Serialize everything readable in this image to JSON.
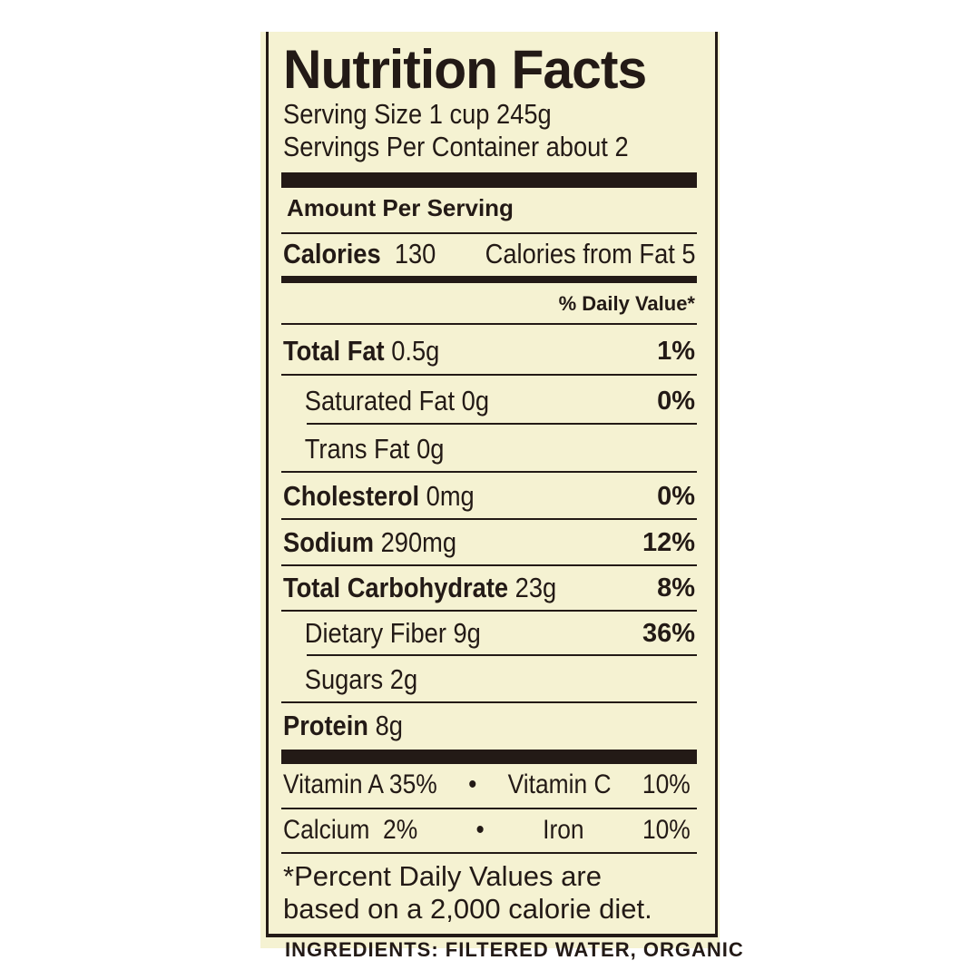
{
  "title": "Nutrition Facts",
  "serving_size": "Serving Size 1 cup 245g",
  "servings_per_container": "Servings Per Container about 2",
  "amount_per_serving": "Amount Per Serving",
  "calories": {
    "label": "Calories",
    "value": "130",
    "from_fat": "Calories from Fat 5"
  },
  "daily_value_header": "% Daily Value*",
  "nutrients": [
    {
      "label": "Total Fat",
      "amount": "0.5g",
      "dv": "1%"
    },
    {
      "label": "Saturated Fat",
      "amount": "0g",
      "dv": "0%"
    },
    {
      "label": "Trans Fat",
      "amount": "0g",
      "dv": ""
    },
    {
      "label": "Cholesterol",
      "amount": "0mg",
      "dv": "0%"
    },
    {
      "label": "Sodium",
      "amount": "290mg",
      "dv": "12%"
    },
    {
      "label": "Total Carbohydrate",
      "amount": "23g",
      "dv": "8%"
    },
    {
      "label": "Dietary Fiber",
      "amount": "9g",
      "dv": "36%"
    },
    {
      "label": "Sugars",
      "amount": "2g",
      "dv": ""
    },
    {
      "label": "Protein",
      "amount": "8g",
      "dv": ""
    }
  ],
  "vitamins": {
    "row1": {
      "a": "Vitamin A 35%",
      "sep": "•",
      "b": "Vitamin C",
      "b_val": "10%"
    },
    "row2": {
      "a": "Calcium  2%",
      "sep": "•",
      "b": "Iron",
      "b_val": "10%"
    }
  },
  "footnote": [
    "*Percent Daily Values are",
    "based on a 2,000 calorie diet."
  ],
  "ingredients_partial": "INGREDIENTS: FILTERED WATER, ORGANIC"
}
